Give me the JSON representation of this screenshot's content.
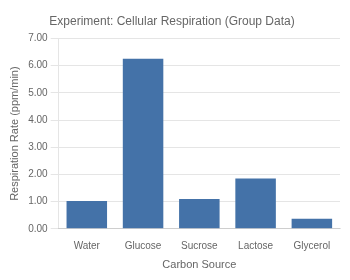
{
  "chart_data": {
    "type": "bar",
    "title": "Experiment: Cellular Respiration (Group Data)",
    "categories": [
      "Water",
      "Glucose",
      "Sucrose",
      "Lactose",
      "Glycerol"
    ],
    "values": [
      1.02,
      6.25,
      1.1,
      1.85,
      0.37
    ],
    "color": "#4472a8",
    "xlabel": "Carbon Source",
    "ylabel": "Respiration Rate (ppm/min)",
    "ylim": [
      0,
      7.0
    ],
    "yticks": [
      {
        "value": 0,
        "label": "0.00"
      },
      {
        "value": 1,
        "label": "1.00"
      },
      {
        "value": 2,
        "label": "2.00"
      },
      {
        "value": 3,
        "label": "3.00"
      },
      {
        "value": 4,
        "label": "4.00"
      },
      {
        "value": 5,
        "label": "5.00"
      },
      {
        "value": 6,
        "label": "6.00"
      },
      {
        "value": 7,
        "label": "7.00"
      }
    ],
    "grid": true
  }
}
